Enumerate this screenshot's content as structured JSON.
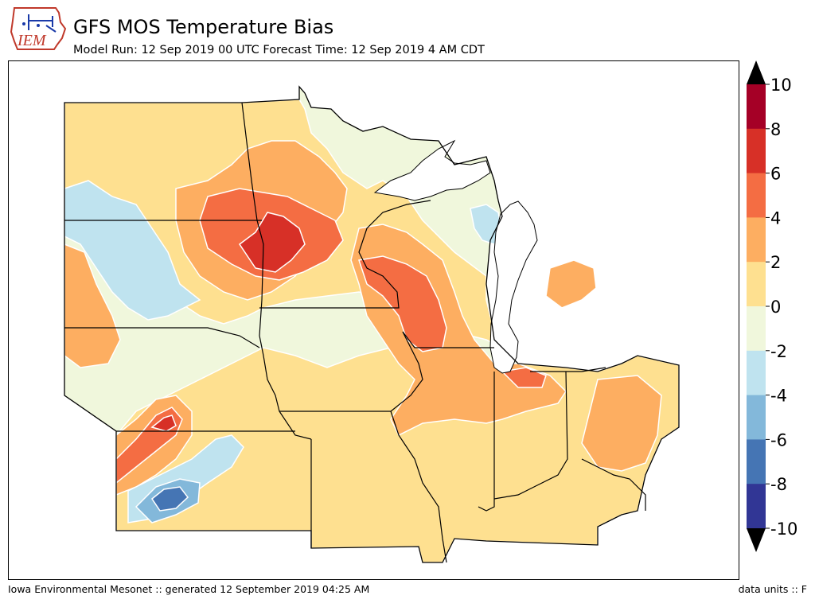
{
  "header": {
    "logo_text": "IEM",
    "title": "GFS MOS Temperature Bias",
    "subtitle": "Model Run: 12 Sep 2019 00 UTC Forecast Time: 12 Sep 2019 4 AM CDT"
  },
  "colorbar": {
    "ticks": [
      "10",
      "8",
      "6",
      "4",
      "2",
      "0",
      "-2",
      "-4",
      "-6",
      "-8",
      "-10"
    ],
    "levels": [
      10,
      9,
      8,
      7,
      6,
      5,
      4,
      3,
      2,
      1,
      0,
      -1,
      -2,
      -3,
      -4,
      -5,
      -6,
      -7,
      -8,
      -9,
      -10
    ],
    "colors": [
      "#a50026",
      "#d73027",
      "#f46d43",
      "#fdae61",
      "#fee090",
      "#f0f7dc",
      "#bfe3ef",
      "#83b8da",
      "#4575b4",
      "#313695"
    ],
    "over_color": "#000000",
    "under_color": "#000000"
  },
  "map_colors": {
    "lake_fill": "#ffffff",
    "border": "#000000",
    "contour": "#ffffff"
  },
  "footer": {
    "left": "Iowa Environmental Mesonet :: generated 12 September 2019 04:25 AM",
    "right": "data units :: F"
  }
}
